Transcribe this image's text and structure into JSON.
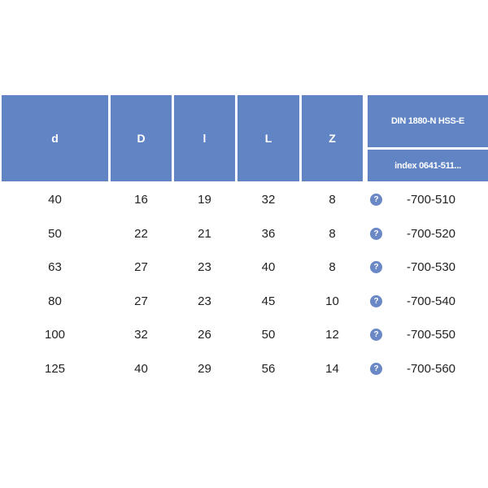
{
  "headers": [
    "d",
    "D",
    "l",
    "L",
    "Z"
  ],
  "group_header": "DIN 1880-N HSS-E",
  "index_header": "index 0641-511...",
  "help_icon": "question-circle-icon",
  "accent": "#6185c4",
  "rows": [
    [
      "40",
      "16",
      "19",
      "32",
      "8",
      "-700-510"
    ],
    [
      "50",
      "22",
      "21",
      "36",
      "8",
      "-700-520"
    ],
    [
      "63",
      "27",
      "23",
      "40",
      "8",
      "-700-530"
    ],
    [
      "80",
      "27",
      "23",
      "45",
      "10",
      "-700-540"
    ],
    [
      "100",
      "32",
      "26",
      "50",
      "12",
      "-700-550"
    ],
    [
      "125",
      "40",
      "29",
      "56",
      "14",
      "-700-560"
    ]
  ]
}
